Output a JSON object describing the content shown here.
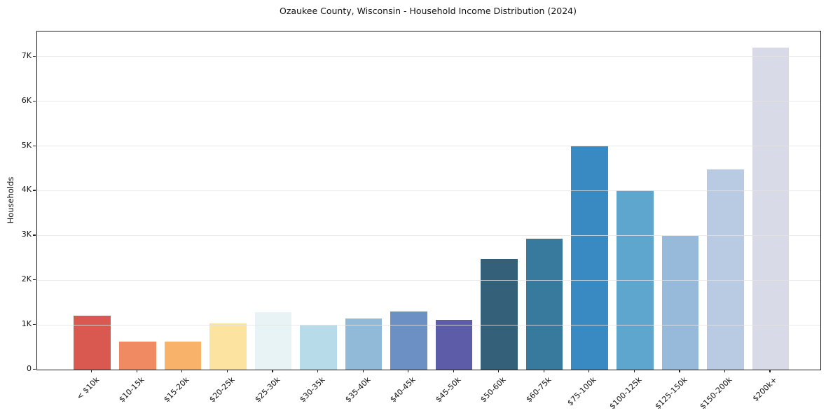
{
  "chart_data": {
    "type": "bar",
    "title": "Ozaukee County, Wisconsin - Household Income Distribution (2024)",
    "xlabel": "",
    "ylabel": "Households",
    "categories": [
      "< $10k",
      "$10-15k",
      "$15-20k",
      "$20-25k",
      "$25-30k",
      "$30-35k",
      "$35-40k",
      "$40-45k",
      "$45-50k",
      "$50-60k",
      "$60-75k",
      "$75-100k",
      "$100-125k",
      "$125-150k",
      "$150-200k",
      "$200k+"
    ],
    "values": [
      1200,
      620,
      620,
      1030,
      1290,
      1000,
      1140,
      1300,
      1110,
      2480,
      2920,
      5000,
      4000,
      2990,
      4480,
      7200
    ],
    "bar_colors": [
      "#d9584f",
      "#f08a63",
      "#f9b26a",
      "#fce3a0",
      "#e8f3f6",
      "#b8dbe9",
      "#90bad8",
      "#6d90c4",
      "#5c5ca8",
      "#35607a",
      "#38799e",
      "#398ac2",
      "#5fa6cf",
      "#97b9da",
      "#b9cbe2",
      "#d9dae8"
    ],
    "ylim": [
      0,
      7560
    ],
    "yticks": [
      {
        "value": 0,
        "label": "0"
      },
      {
        "value": 1000,
        "label": "1K"
      },
      {
        "value": 2000,
        "label": "2K"
      },
      {
        "value": 3000,
        "label": "3K"
      },
      {
        "value": 4000,
        "label": "4K"
      },
      {
        "value": 5000,
        "label": "5K"
      },
      {
        "value": 6000,
        "label": "6K"
      },
      {
        "value": 7000,
        "label": "7K"
      }
    ],
    "grid": "horizontal",
    "gridline_color": "#e4e4e4",
    "legend": "none",
    "background": "#ffffff",
    "frame_color": "#1f1f1f",
    "text_color": "#111111"
  }
}
